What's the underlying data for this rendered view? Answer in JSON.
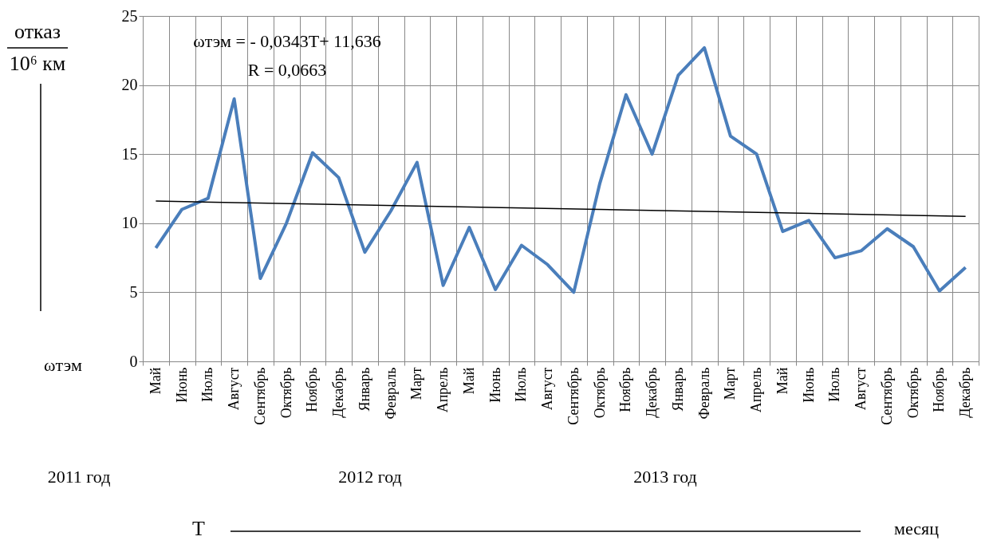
{
  "chart_data": {
    "type": "line",
    "categories": [
      "Май",
      "Июнь",
      "Июль",
      "Август",
      "Сентябрь",
      "Октябрь",
      "Ноябрь",
      "Декабрь",
      "Январь",
      "Февраль",
      "Март",
      "Апрель",
      "Май",
      "Июнь",
      "Июль",
      "Август",
      "Сентябрь",
      "Октябрь",
      "Ноябрь",
      "Декабрь",
      "Январь",
      "Февраль",
      "Март",
      "Апрель",
      "Май",
      "Июнь",
      "Июль",
      "Август",
      "Сентябрь",
      "Октябрь",
      "Ноябрь",
      "Декабрь"
    ],
    "series": [
      {
        "color": "#4a7ebb",
        "values": [
          8.2,
          11.0,
          11.8,
          19.0,
          6.0,
          10.0,
          15.1,
          13.3,
          7.9,
          10.9,
          14.4,
          5.5,
          9.7,
          5.2,
          8.4,
          7.0,
          5.0,
          12.9,
          19.3,
          15.0,
          20.7,
          22.7,
          16.3,
          15.0,
          9.4,
          10.2,
          7.5,
          8.0,
          9.6,
          8.3,
          5.1,
          6.8
        ]
      },
      {
        "type": "line",
        "color": "#000000",
        "values": [
          11.6,
          null,
          null,
          null,
          null,
          null,
          null,
          null,
          null,
          null,
          null,
          null,
          null,
          null,
          null,
          null,
          null,
          null,
          null,
          null,
          null,
          null,
          null,
          null,
          null,
          null,
          null,
          null,
          null,
          null,
          null,
          10.5
        ]
      }
    ],
    "ylabel": "отказ",
    "xlabel": "T",
    "ylim": [
      0,
      25
    ],
    "yticks": [
      0,
      5,
      10,
      15,
      20,
      25
    ],
    "grid": true,
    "marker": "none",
    "line_style": "solid",
    "annotations": [
      "ωтэм = - 0,0343T+ 11,636",
      "R = 0,0663",
      "ωтэм",
      "2011 год",
      "2012 год",
      "2013 год",
      "месяц",
      "10⁶ км"
    ]
  }
}
